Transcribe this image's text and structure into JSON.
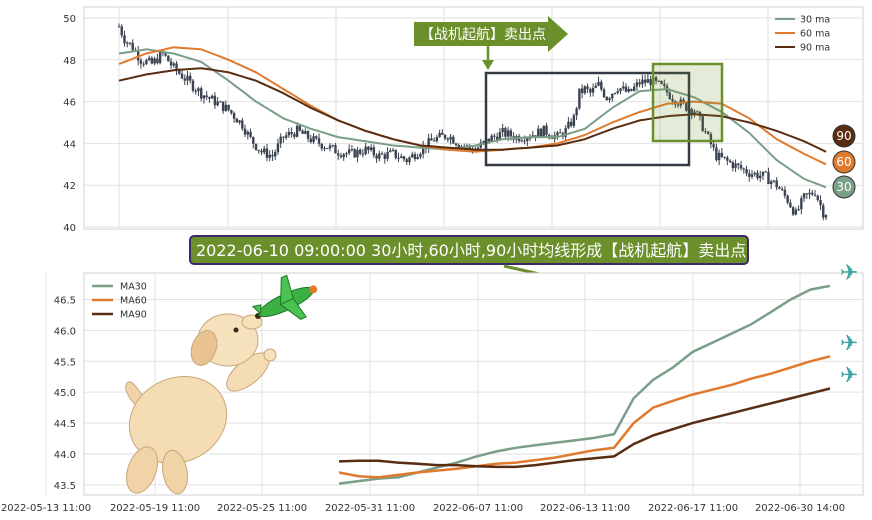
{
  "chart_data": [
    {
      "type": "candlestick",
      "ylim": [
        40,
        50
      ],
      "y_ticks": [
        "40",
        "42",
        "44",
        "46",
        "48",
        "50"
      ],
      "grid": true,
      "legend": {
        "placement": "top-right",
        "items": [
          {
            "name": "30 ma",
            "color": "#7a9e87"
          },
          {
            "name": "60 ma",
            "color": "#e07a2e"
          },
          {
            "name": "90 ma",
            "color": "#5a2d12"
          }
        ]
      },
      "price_anchors": [
        [
          0,
          49.6
        ],
        [
          2,
          49.0
        ],
        [
          5,
          48.6
        ],
        [
          8,
          48.0
        ],
        [
          12,
          47.8
        ],
        [
          16,
          48.3
        ],
        [
          20,
          47.6
        ],
        [
          25,
          47.0
        ],
        [
          30,
          46.4
        ],
        [
          35,
          46.0
        ],
        [
          40,
          45.6
        ],
        [
          45,
          44.9
        ],
        [
          48,
          44.2
        ],
        [
          52,
          43.6
        ],
        [
          56,
          43.4
        ],
        [
          60,
          44.3
        ],
        [
          65,
          44.6
        ],
        [
          70,
          44.2
        ],
        [
          75,
          43.9
        ],
        [
          80,
          43.6
        ],
        [
          85,
          43.5
        ],
        [
          90,
          43.7
        ],
        [
          95,
          43.4
        ],
        [
          100,
          43.5
        ],
        [
          105,
          43.2
        ],
        [
          110,
          43.7
        ],
        [
          115,
          44.2
        ],
        [
          120,
          44.4
        ],
        [
          125,
          43.9
        ],
        [
          130,
          43.7
        ],
        [
          135,
          44.2
        ],
        [
          140,
          44.5
        ],
        [
          145,
          44.3
        ],
        [
          150,
          44.4
        ],
        [
          155,
          44.6
        ],
        [
          160,
          44.3
        ],
        [
          163,
          44.6
        ],
        [
          166,
          45.2
        ],
        [
          168,
          46.4
        ],
        [
          170,
          46.6
        ],
        [
          172,
          46.4
        ],
        [
          175,
          46.8
        ],
        [
          178,
          46.2
        ],
        [
          182,
          46.7
        ],
        [
          186,
          46.4
        ],
        [
          190,
          46.9
        ],
        [
          194,
          47.0
        ],
        [
          198,
          46.7
        ],
        [
          202,
          46.2
        ],
        [
          206,
          45.8
        ],
        [
          210,
          45.6
        ],
        [
          213,
          44.8
        ],
        [
          218,
          43.4
        ],
        [
          224,
          43.0
        ],
        [
          230,
          42.6
        ],
        [
          236,
          42.4
        ],
        [
          240,
          42.0
        ],
        [
          244,
          41.3
        ],
        [
          247,
          40.6
        ],
        [
          250,
          41.4
        ],
        [
          254,
          41.7
        ],
        [
          257,
          40.7
        ]
      ],
      "ma30_anchors": [
        [
          0,
          48.3
        ],
        [
          10,
          48.5
        ],
        [
          20,
          48.3
        ],
        [
          30,
          47.9
        ],
        [
          40,
          47.0
        ],
        [
          50,
          46.0
        ],
        [
          60,
          45.2
        ],
        [
          70,
          44.7
        ],
        [
          80,
          44.3
        ],
        [
          90,
          44.1
        ],
        [
          100,
          43.9
        ],
        [
          110,
          43.8
        ],
        [
          120,
          43.7
        ],
        [
          130,
          43.9
        ],
        [
          140,
          44.2
        ],
        [
          150,
          44.3
        ],
        [
          160,
          44.3
        ],
        [
          170,
          44.7
        ],
        [
          180,
          45.7
        ],
        [
          190,
          46.5
        ],
        [
          200,
          46.6
        ],
        [
          210,
          46.2
        ],
        [
          220,
          45.5
        ],
        [
          230,
          44.5
        ],
        [
          240,
          43.2
        ],
        [
          250,
          42.3
        ],
        [
          258,
          41.9
        ]
      ],
      "ma60_anchors": [
        [
          0,
          47.8
        ],
        [
          10,
          48.3
        ],
        [
          20,
          48.6
        ],
        [
          30,
          48.5
        ],
        [
          40,
          48.0
        ],
        [
          50,
          47.4
        ],
        [
          60,
          46.6
        ],
        [
          70,
          45.8
        ],
        [
          80,
          45.1
        ],
        [
          90,
          44.6
        ],
        [
          100,
          44.2
        ],
        [
          110,
          43.9
        ],
        [
          120,
          43.7
        ],
        [
          130,
          43.6
        ],
        [
          140,
          43.7
        ],
        [
          150,
          43.8
        ],
        [
          160,
          44.0
        ],
        [
          170,
          44.4
        ],
        [
          180,
          45.0
        ],
        [
          190,
          45.5
        ],
        [
          200,
          45.9
        ],
        [
          210,
          46.0
        ],
        [
          220,
          45.9
        ],
        [
          230,
          45.2
        ],
        [
          240,
          44.2
        ],
        [
          250,
          43.5
        ],
        [
          258,
          43.0
        ]
      ],
      "ma90_anchors": [
        [
          0,
          47.0
        ],
        [
          10,
          47.3
        ],
        [
          20,
          47.5
        ],
        [
          30,
          47.6
        ],
        [
          40,
          47.4
        ],
        [
          50,
          47.0
        ],
        [
          60,
          46.4
        ],
        [
          70,
          45.7
        ],
        [
          80,
          45.1
        ],
        [
          90,
          44.6
        ],
        [
          100,
          44.2
        ],
        [
          110,
          43.9
        ],
        [
          120,
          43.8
        ],
        [
          130,
          43.7
        ],
        [
          140,
          43.7
        ],
        [
          150,
          43.8
        ],
        [
          160,
          43.9
        ],
        [
          170,
          44.2
        ],
        [
          180,
          44.7
        ],
        [
          190,
          45.1
        ],
        [
          200,
          45.3
        ],
        [
          210,
          45.4
        ],
        [
          220,
          45.3
        ],
        [
          230,
          45.0
        ],
        [
          240,
          44.6
        ],
        [
          250,
          44.1
        ],
        [
          258,
          43.6
        ]
      ],
      "badges": [
        "90",
        "60",
        "30"
      ],
      "annotation_arrow_text": "【战机起航】卖出点"
    },
    {
      "type": "line",
      "ylim": [
        43.4,
        46.8
      ],
      "y_ticks": [
        "43.5",
        "44.0",
        "44.5",
        "45.0",
        "45.5",
        "46.0",
        "46.5"
      ],
      "x_ticks": [
        "2022-05-13 11:00",
        "2022-05-19 11:00",
        "2022-05-25 11:00",
        "2022-05-31 11:00",
        "2022-06-07 11:00",
        "2022-06-13 11:00",
        "2022-06-17 11:00",
        "2022-06-30 14:00"
      ],
      "grid": true,
      "legend": {
        "placement": "top-left",
        "items": [
          {
            "name": "MA30",
            "color": "#7a9e87"
          },
          {
            "name": "MA60",
            "color": "#e07a2e"
          },
          {
            "name": "MA90",
            "color": "#5a2d12"
          }
        ]
      },
      "series": [
        {
          "name": "MA30",
          "color": "#7a9e87",
          "x": [
            0,
            10,
            20,
            30,
            40,
            50,
            60,
            70,
            80,
            90,
            100,
            110,
            120,
            130,
            140,
            150,
            160,
            170,
            180,
            190,
            200,
            210,
            220,
            230,
            240,
            250
          ],
          "values": [
            43.52,
            43.56,
            43.6,
            43.62,
            43.7,
            43.78,
            43.86,
            43.96,
            44.04,
            44.1,
            44.14,
            44.18,
            44.22,
            44.26,
            44.32,
            44.9,
            45.2,
            45.4,
            45.65,
            45.8,
            45.95,
            46.1,
            46.3,
            46.5,
            46.66,
            46.72
          ]
        },
        {
          "name": "MA60",
          "color": "#e07a2e",
          "x": [
            0,
            10,
            20,
            30,
            40,
            50,
            60,
            70,
            80,
            90,
            100,
            110,
            120,
            130,
            140,
            150,
            160,
            170,
            180,
            190,
            200,
            210,
            220,
            230,
            240,
            250
          ],
          "values": [
            43.7,
            43.64,
            43.62,
            43.66,
            43.7,
            43.73,
            43.76,
            43.8,
            43.84,
            43.86,
            43.9,
            43.94,
            44.0,
            44.06,
            44.1,
            44.5,
            44.75,
            44.86,
            44.96,
            45.04,
            45.12,
            45.22,
            45.3,
            45.4,
            45.5,
            45.58
          ]
        },
        {
          "name": "MA90",
          "color": "#5a2d12",
          "x": [
            0,
            10,
            20,
            30,
            40,
            50,
            60,
            70,
            80,
            90,
            100,
            110,
            120,
            130,
            140,
            150,
            160,
            170,
            180,
            190,
            200,
            210,
            220,
            230,
            240,
            250
          ],
          "values": [
            43.88,
            43.89,
            43.89,
            43.86,
            43.84,
            43.82,
            43.82,
            43.8,
            43.79,
            43.79,
            43.82,
            43.86,
            43.9,
            43.93,
            43.96,
            44.16,
            44.3,
            44.4,
            44.5,
            44.58,
            44.66,
            44.74,
            44.82,
            44.9,
            44.98,
            45.06
          ]
        }
      ]
    }
  ],
  "banner_text": "2022-06-10 09:00:00 30小时,60小时,90小时均线形成【战机起航】卖出点"
}
